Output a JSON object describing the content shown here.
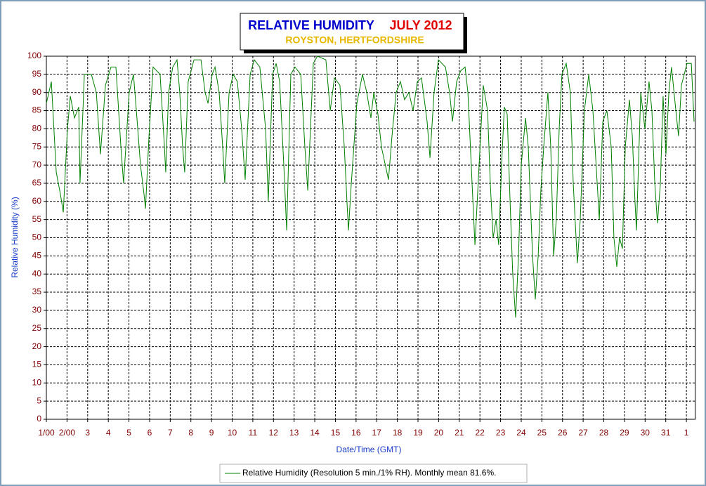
{
  "chart_data": {
    "type": "line",
    "title": "RELATIVE HUMIDITY",
    "period": "JULY 2012",
    "subtitle": "ROYSTON, HERTFORDSHIRE",
    "xlabel": "Date/Time (GMT)",
    "ylabel": "Relative Humidity (%)",
    "xlim": [
      0,
      31.43
    ],
    "ylim": [
      0,
      100
    ],
    "xticks": [
      {
        "value": 0,
        "label": "1/00"
      },
      {
        "value": 1,
        "label": "2/00"
      },
      {
        "value": 2,
        "label": "3"
      },
      {
        "value": 3,
        "label": "4"
      },
      {
        "value": 4,
        "label": "5"
      },
      {
        "value": 5,
        "label": "6"
      },
      {
        "value": 6,
        "label": "7"
      },
      {
        "value": 7,
        "label": "8"
      },
      {
        "value": 8,
        "label": "9"
      },
      {
        "value": 9,
        "label": "10"
      },
      {
        "value": 10,
        "label": "11"
      },
      {
        "value": 11,
        "label": "12"
      },
      {
        "value": 12,
        "label": "13"
      },
      {
        "value": 13,
        "label": "14"
      },
      {
        "value": 14,
        "label": "15"
      },
      {
        "value": 15,
        "label": "16"
      },
      {
        "value": 16,
        "label": "17"
      },
      {
        "value": 17,
        "label": "18"
      },
      {
        "value": 18,
        "label": "19"
      },
      {
        "value": 19,
        "label": "20"
      },
      {
        "value": 20,
        "label": "21"
      },
      {
        "value": 21,
        "label": "22"
      },
      {
        "value": 22,
        "label": "23"
      },
      {
        "value": 23,
        "label": "24"
      },
      {
        "value": 24,
        "label": "25"
      },
      {
        "value": 25,
        "label": "26"
      },
      {
        "value": 26,
        "label": "27"
      },
      {
        "value": 27,
        "label": "28"
      },
      {
        "value": 28,
        "label": "29"
      },
      {
        "value": 29,
        "label": "30"
      },
      {
        "value": 30,
        "label": "31"
      },
      {
        "value": 31,
        "label": "1"
      }
    ],
    "yticks": [
      0,
      5,
      10,
      15,
      20,
      25,
      30,
      35,
      40,
      45,
      50,
      55,
      60,
      65,
      70,
      75,
      80,
      85,
      90,
      95,
      100
    ],
    "grid": true,
    "x": [
      0,
      0.24,
      0.48,
      0.68,
      0.82,
      1.02,
      1.16,
      1.36,
      1.57,
      1.63,
      1.84,
      2.18,
      2.42,
      2.62,
      2.86,
      3.13,
      3.37,
      3.61,
      3.74,
      4.01,
      4.22,
      4.36,
      4.56,
      4.73,
      4.8,
      4.97,
      5.17,
      5.51,
      5.72,
      5.78,
      5.92,
      6.12,
      6.33,
      6.46,
      6.6,
      6.7,
      6.87,
      7.15,
      7.49,
      7.69,
      7.83,
      8.03,
      8.17,
      8.37,
      8.54,
      8.64,
      8.85,
      9.05,
      9.25,
      9.46,
      9.63,
      9.87,
      10.07,
      10.34,
      10.62,
      10.75,
      10.96,
      11.13,
      11.3,
      11.5,
      11.64,
      11.84,
      12.04,
      12.32,
      12.52,
      12.66,
      12.93,
      13.13,
      13.54,
      13.75,
      13.95,
      14.22,
      14.43,
      14.56,
      14.63,
      14.77,
      15.04,
      15.31,
      15.52,
      15.72,
      15.86,
      16.06,
      16.23,
      16.57,
      16.74,
      16.94,
      17.15,
      17.35,
      17.56,
      17.76,
      17.97,
      18.17,
      18.44,
      18.58,
      18.78,
      18.99,
      19.33,
      19.53,
      19.67,
      19.87,
      20.07,
      20.28,
      20.42,
      20.62,
      20.76,
      20.96,
      21.16,
      21.37,
      21.5,
      21.64,
      21.78,
      21.91,
      22.05,
      22.18,
      22.32,
      22.46,
      22.59,
      22.73,
      22.87,
      23.0,
      23.21,
      23.34,
      23.55,
      23.68,
      23.82,
      23.95,
      24.09,
      24.29,
      24.43,
      24.57,
      24.7,
      24.84,
      24.97,
      25.18,
      25.38,
      25.52,
      25.72,
      25.86,
      26.06,
      26.27,
      26.47,
      26.68,
      26.78,
      26.95,
      27.15,
      27.36,
      27.49,
      27.63,
      27.76,
      27.9,
      28.04,
      28.24,
      28.38,
      28.51,
      28.58,
      28.79,
      28.99,
      29.19,
      29.33,
      29.47,
      29.6,
      29.74,
      29.87,
      30.01,
      30.15,
      30.28,
      30.49,
      30.62,
      30.76,
      31.03,
      31.24,
      31.37
    ],
    "series": [
      {
        "name": "Relative Humidity (Resolution 5 min./1% RH). Monthly mean 81.6%.",
        "color": "#008000",
        "values": [
          87,
          93,
          68,
          62,
          57,
          80,
          89,
          83,
          86,
          65,
          95,
          95,
          90,
          73,
          92,
          97,
          97,
          75,
          65,
          90,
          95,
          85,
          70,
          62,
          58,
          78,
          97,
          95,
          75,
          68,
          90,
          97,
          99,
          90,
          75,
          68,
          93,
          99,
          99,
          90,
          87,
          95,
          97,
          90,
          75,
          65,
          90,
          95,
          93,
          80,
          66,
          95,
          99,
          97,
          80,
          60,
          95,
          98,
          93,
          70,
          52,
          95,
          97,
          95,
          75,
          63,
          98,
          100,
          99,
          85,
          94,
          92,
          75,
          60,
          52,
          65,
          87,
          95,
          90,
          83,
          90,
          84,
          75,
          66,
          78,
          90,
          93,
          88,
          90,
          85,
          93,
          94,
          82,
          72,
          90,
          99,
          97,
          90,
          82,
          93,
          96,
          97,
          90,
          65,
          48,
          70,
          92,
          85,
          65,
          50,
          55,
          48,
          70,
          86,
          84,
          60,
          40,
          28,
          45,
          70,
          83,
          75,
          45,
          33,
          45,
          63,
          75,
          90,
          75,
          45,
          55,
          80,
          95,
          98,
          90,
          65,
          43,
          55,
          85,
          95,
          85,
          65,
          55,
          82,
          85,
          75,
          50,
          42,
          50,
          47,
          75,
          88,
          78,
          60,
          52,
          90,
          80,
          93,
          85,
          65,
          54,
          65,
          89,
          73,
          90,
          97,
          85,
          78,
          92,
          98,
          98,
          82
        ]
      }
    ]
  }
}
